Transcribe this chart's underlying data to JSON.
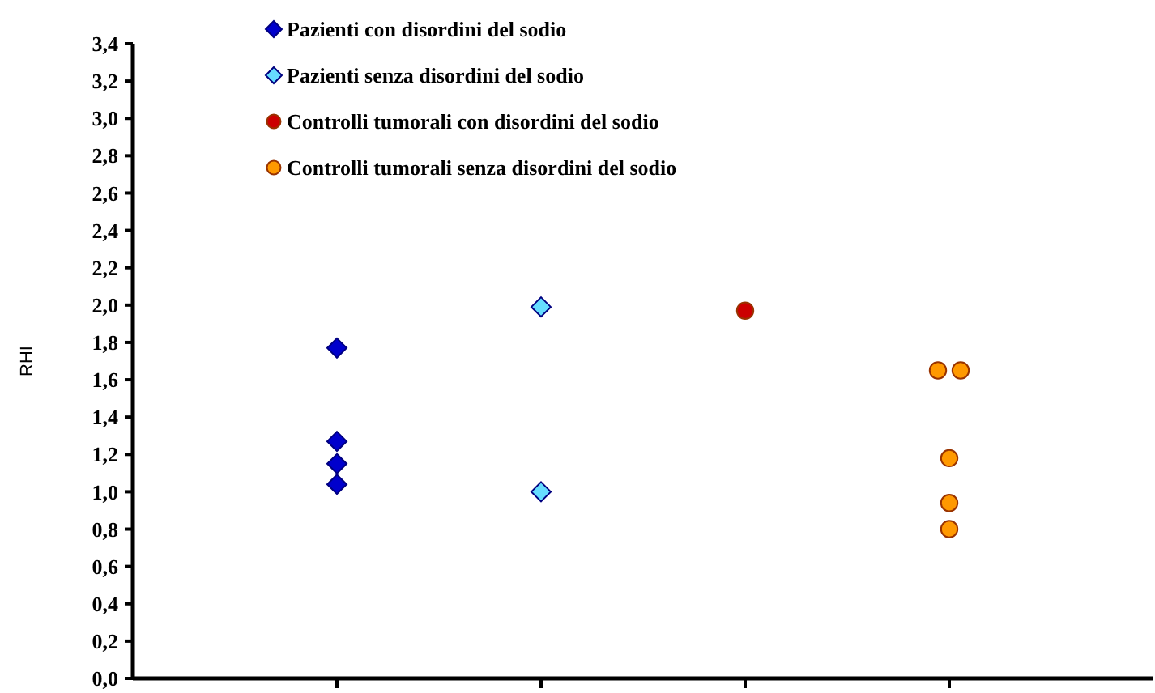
{
  "chart_data": {
    "type": "scatter",
    "ylabel": "RHI",
    "categories": [
      null,
      null,
      null,
      null
    ],
    "ylim": [
      0,
      3.4
    ],
    "yticks": [
      {
        "value": 0,
        "label": "0,0"
      },
      {
        "value": 0.2,
        "label": "0,2"
      },
      {
        "value": 0.4,
        "label": "0,4"
      },
      {
        "value": 0.6,
        "label": "0,6"
      },
      {
        "value": 0.8,
        "label": "0,8"
      },
      {
        "value": 1,
        "label": "1,0"
      },
      {
        "value": 1.2,
        "label": "1,2"
      },
      {
        "value": 1.4,
        "label": "1,4"
      },
      {
        "value": 1.6,
        "label": "1,6"
      },
      {
        "value": 1.8,
        "label": "1,8"
      },
      {
        "value": 2,
        "label": "2,0"
      },
      {
        "value": 2.2,
        "label": "2,2"
      },
      {
        "value": 2.4,
        "label": "2,4"
      },
      {
        "value": 2.6,
        "label": "2,6"
      },
      {
        "value": 2.8,
        "label": "2,8"
      },
      {
        "value": 3,
        "label": "3,0"
      },
      {
        "value": 3.2,
        "label": "3,2"
      },
      {
        "value": 3.4,
        "label": "3,4"
      }
    ],
    "tick_labels": "y",
    "legend": "top",
    "series": [
      {
        "name": "Pazienti con disordini del sodio",
        "color": "#0000cc",
        "marker": "diamond",
        "values": [
          1.77,
          null,
          null,
          null
        ]
      },
      {
        "color": "#0000cc",
        "marker": "diamond",
        "values": [
          1.27,
          null,
          null,
          null
        ]
      },
      {
        "color": "#0000cc",
        "marker": "diamond",
        "values": [
          1.15,
          null,
          null,
          null
        ]
      },
      {
        "color": "#0000cc",
        "marker": "diamond",
        "values": [
          1.04,
          null,
          null,
          null
        ]
      },
      {
        "name": "Pazienti senza disordini del sodio",
        "color": "#66ddff",
        "marker": "diamond",
        "values": [
          null,
          1.99,
          null,
          null
        ]
      },
      {
        "color": "#66ddff",
        "marker": "diamond",
        "values": [
          null,
          1.0,
          null,
          null
        ]
      },
      {
        "name": "Controlli tumorali con disordini del sodio",
        "color": "#cc0000",
        "marker": "circle",
        "values": [
          null,
          null,
          1.97,
          null
        ]
      },
      {
        "name": "Controlli tumorali senza disordini del sodio",
        "color": "#ff9900",
        "marker": "circle",
        "values": [
          null,
          null,
          null,
          1.65
        ]
      },
      {
        "color": "#ff9900",
        "marker": "circle",
        "values": [
          null,
          null,
          null,
          1.65
        ]
      },
      {
        "color": "#ff9900",
        "marker": "circle",
        "values": [
          null,
          null,
          null,
          1.18
        ]
      },
      {
        "color": "#ff9900",
        "marker": "circle",
        "values": [
          null,
          null,
          null,
          0.94
        ]
      },
      {
        "color": "#ff9900",
        "marker": "circle",
        "values": [
          null,
          null,
          null,
          0.8
        ]
      }
    ]
  }
}
